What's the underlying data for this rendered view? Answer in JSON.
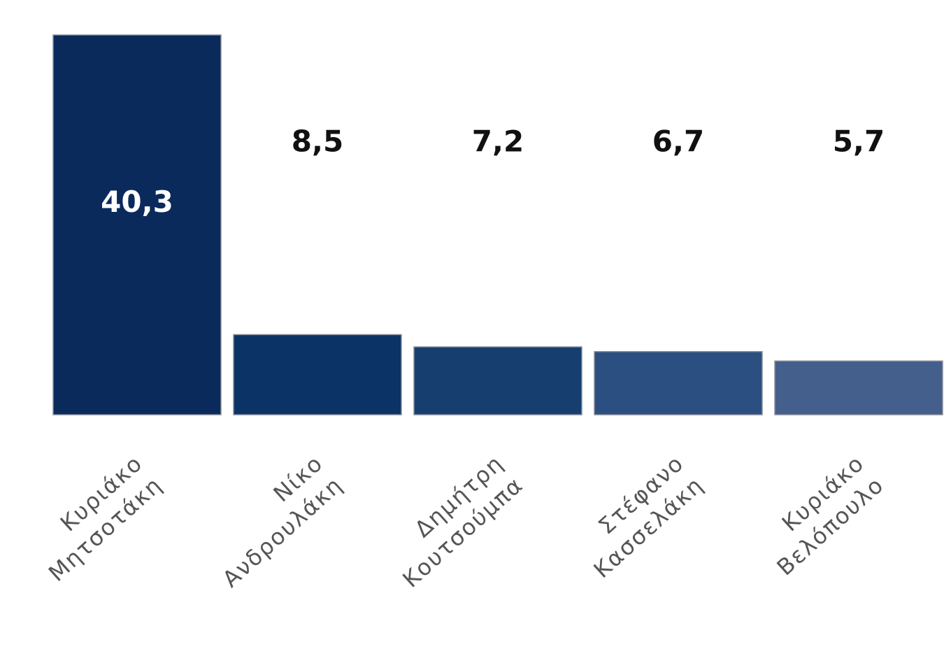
{
  "chart_data": {
    "type": "bar",
    "categories": [
      "Κυριάκο Μητσοτάκη",
      "Νίκο Ανδρουλάκη",
      "Δημήτρη Κουτσούμπα",
      "Στέφανο Κασσελάκη",
      "Κυριάκο Βελόπουλο"
    ],
    "values": [
      40.3,
      8.5,
      7.2,
      6.7,
      5.7
    ],
    "value_labels": [
      "40,3",
      "8,5",
      "7,2",
      "6,7",
      "5,7"
    ],
    "colors": [
      "#0a2a5c",
      "#0b3366",
      "#163f70",
      "#2b4f80",
      "#445f8c"
    ]
  }
}
